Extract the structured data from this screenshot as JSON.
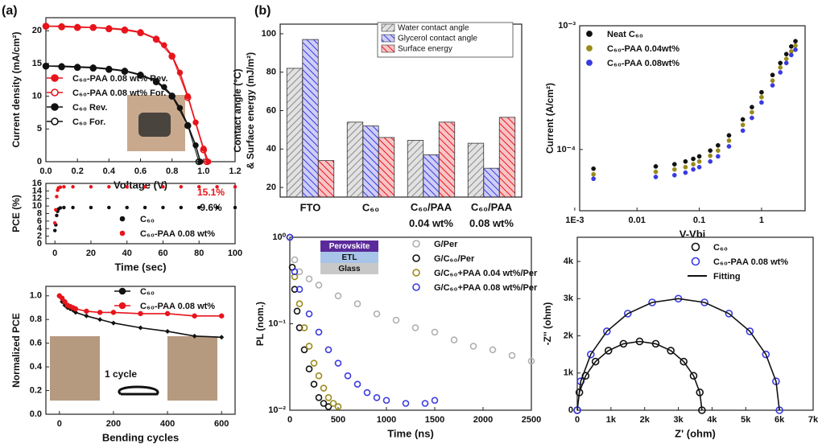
{
  "panel_labels": [
    "(a)",
    "(b)"
  ],
  "chart_data": [
    {
      "type": "line",
      "xlabel": "Voltage (V)",
      "ylabel": "Current density (mA/cm²)",
      "xlim": [
        0,
        1.2
      ],
      "xticks": [
        {
          "value": 0,
          "label": "0.0"
        },
        0.2,
        0.4,
        0.6,
        0.8,
        {
          "value": 1,
          "label": "1.0"
        },
        1.2
      ],
      "ylim": [
        0,
        22
      ],
      "yticks": [
        0,
        5,
        10,
        15,
        20
      ],
      "series": [
        {
          "name": "C₆₀-PAA 0.08 wt%  Rev.",
          "color": "#e8141b",
          "marker": "filled",
          "x": [
            0,
            0.1,
            0.2,
            0.3,
            0.4,
            0.5,
            0.6,
            0.7,
            0.75,
            0.8,
            0.85,
            0.9,
            0.95,
            1.0,
            1.03
          ],
          "values": [
            20.7,
            20.7,
            20.6,
            20.5,
            20.4,
            20.2,
            19.8,
            18.8,
            17.8,
            16.2,
            13.6,
            10,
            6,
            2,
            0
          ]
        },
        {
          "name": "C₆₀-PAA 0.08 wt%  For.",
          "color": "#e8141b",
          "marker": "open",
          "x": [
            0,
            0.1,
            0.2,
            0.3,
            0.4,
            0.5,
            0.6,
            0.7,
            0.8,
            0.9,
            1.0,
            1.02
          ],
          "values": [
            20.7,
            20.6,
            20.5,
            20.5,
            20.3,
            20.1,
            19.7,
            18.7,
            16.1,
            9.8,
            1.8,
            0
          ]
        },
        {
          "name": "C₆₀ Rev.",
          "color": "#111111",
          "marker": "filled",
          "x": [
            0,
            0.1,
            0.2,
            0.3,
            0.4,
            0.5,
            0.6,
            0.7,
            0.75,
            0.8,
            0.85,
            0.9,
            0.95,
            0.98
          ],
          "values": [
            14.6,
            14.6,
            14.5,
            14.4,
            14.2,
            13.9,
            13.3,
            12.3,
            11.4,
            10.1,
            8.2,
            5.6,
            2.5,
            0
          ]
        },
        {
          "name": "C₆₀ For.",
          "color": "#111111",
          "marker": "open",
          "x": [
            0,
            0.1,
            0.2,
            0.3,
            0.4,
            0.5,
            0.6,
            0.7,
            0.8,
            0.9,
            0.97
          ],
          "values": [
            14.6,
            14.5,
            14.4,
            14.3,
            14.1,
            13.8,
            13.2,
            12.2,
            10,
            5.5,
            0
          ]
        }
      ]
    },
    {
      "type": "scatter",
      "xlabel": "Time (sec)",
      "ylabel": "PCE (%)",
      "xlim": [
        -5,
        100
      ],
      "xticks": [
        0,
        20,
        40,
        60,
        80,
        100
      ],
      "ylim": [
        0,
        16
      ],
      "yticks": [
        0,
        2,
        4,
        6,
        8,
        10,
        12,
        14,
        16
      ],
      "annotations": [
        {
          "text": "15.1%",
          "color": "#e8141b"
        },
        {
          "text": "9.6%",
          "color": "#111111"
        }
      ],
      "series": [
        {
          "name": "C₆₀",
          "color": "#111111",
          "marker": "filled",
          "x": [
            0,
            0.5,
            1,
            1.5,
            2,
            3,
            5,
            10,
            20,
            30,
            40,
            50,
            60,
            70,
            80,
            90,
            100
          ],
          "values": [
            3.5,
            5,
            7.5,
            8.6,
            9.2,
            9.5,
            9.6,
            9.6,
            9.6,
            9.6,
            9.6,
            9.6,
            9.6,
            9.6,
            9.6,
            9.6,
            9.6
          ]
        },
        {
          "name": "C₆₀-PAA 0.08 wt%",
          "color": "#e8141b",
          "marker": "filled",
          "x": [
            0,
            0.5,
            1,
            1.5,
            2,
            3,
            5,
            10,
            20,
            30,
            40,
            50,
            60,
            70,
            80,
            90,
            100
          ],
          "values": [
            5.5,
            9,
            12.5,
            14.2,
            14.8,
            15,
            15.1,
            15.1,
            15.1,
            15.1,
            15.1,
            15.1,
            15.1,
            15.1,
            15.1,
            15.1,
            15.1
          ]
        }
      ]
    },
    {
      "type": "line",
      "xlabel": "Bending cycles",
      "ylabel": "Normalized PCE",
      "xlim": [
        -50,
        650
      ],
      "xticks": [
        0,
        200,
        400,
        600
      ],
      "ylim": [
        0,
        1.08
      ],
      "yticks": [
        {
          "value": 0,
          "label": "0.0"
        },
        0.2,
        0.4,
        0.6,
        0.8,
        {
          "value": 1,
          "label": "1.0"
        }
      ],
      "annotations": [
        {
          "text": "1 cycle",
          "color": "#111111"
        }
      ],
      "series": [
        {
          "name": "C₆₀",
          "color": "#111111",
          "marker": "diamond",
          "x": [
            0,
            10,
            20,
            30,
            40,
            50,
            60,
            100,
            150,
            200,
            300,
            400,
            500,
            600
          ],
          "values": [
            1,
            0.95,
            0.92,
            0.9,
            0.89,
            0.88,
            0.86,
            0.83,
            0.8,
            0.77,
            0.73,
            0.7,
            0.66,
            0.65
          ]
        },
        {
          "name": "C₆₀-PAA 0.08 wt%",
          "color": "#e8141b",
          "marker": "filled",
          "x": [
            0,
            10,
            20,
            30,
            40,
            50,
            60,
            100,
            150,
            200,
            300,
            400,
            500,
            600
          ],
          "values": [
            1,
            0.98,
            0.95,
            0.92,
            0.91,
            0.9,
            0.89,
            0.87,
            0.86,
            0.86,
            0.85,
            0.85,
            0.83,
            0.83
          ]
        }
      ]
    },
    {
      "type": "bar",
      "ylabel": [
        "Contact angle (°C)",
        "& Surface energy (mJ/m²)"
      ],
      "categories": [
        "FTO",
        "C₆₀",
        "C₆₀/PAA 0.04 wt%",
        "C₆₀/PAA 0.08 wt%"
      ],
      "ylim": [
        15,
        105
      ],
      "yticks": [
        20,
        40,
        60,
        80,
        100
      ],
      "series": [
        {
          "name": "Water contact angle",
          "color": "#8c8c8c",
          "values": [
            82,
            54,
            44.5,
            43
          ]
        },
        {
          "name": "Glycerol contact angle",
          "color": "#3a3ae0",
          "values": [
            97,
            52,
            37,
            30
          ]
        },
        {
          "name": "Surface energy",
          "color": "#e8141b",
          "values": [
            34,
            46,
            54,
            56.5
          ]
        }
      ]
    },
    {
      "type": "scatter",
      "xlabel": "V-Vbi",
      "ylabel": "Current (A/cm²)",
      "xlog": true,
      "ylog": true,
      "xlim": [
        0.0012,
        5
      ],
      "xticks": [
        {
          "value": 0.001,
          "label": "1E-3"
        },
        0.01,
        0.1,
        1
      ],
      "ylim": [
        3.2e-05,
        0.001
      ],
      "yticks": [
        {
          "value": 0.0001,
          "label": "10⁻⁴"
        },
        {
          "value": 0.001,
          "label": "10⁻³"
        }
      ],
      "series": [
        {
          "name": "Neat C₆₀",
          "color": "#111111",
          "marker": "small",
          "x": [
            0.002,
            0.02,
            0.04,
            0.06,
            0.08,
            0.1,
            0.15,
            0.2,
            0.3,
            0.5,
            0.7,
            1,
            1.5,
            2,
            2.5,
            3,
            3.5
          ],
          "values": [
            7e-05,
            7.3e-05,
            7.6e-05,
            8e-05,
            8.4e-05,
            8.8e-05,
            9.8e-05,
            0.000108,
            0.00013,
            0.000175,
            0.00022,
            0.00029,
            0.0004,
            0.0005,
            0.00059,
            0.00068,
            0.00075
          ]
        },
        {
          "name": "C₆₀-PAA 0.04wt%",
          "color": "#9a8a1a",
          "marker": "small",
          "x": [
            0.002,
            0.02,
            0.04,
            0.06,
            0.08,
            0.1,
            0.15,
            0.2,
            0.3,
            0.5,
            0.7,
            1,
            1.5,
            2,
            2.5,
            3,
            3.5
          ],
          "values": [
            6.3e-05,
            6.6e-05,
            6.9e-05,
            7.2e-05,
            7.6e-05,
            8e-05,
            8.9e-05,
            9.8e-05,
            0.000118,
            0.000158,
            0.0002,
            0.000265,
            0.00036,
            0.00046,
            0.00054,
            0.00062,
            0.00069
          ]
        },
        {
          "name": "C₆₀-PAA 0.08wt%",
          "color": "#3a3ae0",
          "marker": "small",
          "x": [
            0.002,
            0.02,
            0.04,
            0.06,
            0.08,
            0.1,
            0.15,
            0.2,
            0.3,
            0.5,
            0.7,
            1,
            1.5,
            2,
            2.5,
            3,
            3.5
          ],
          "values": [
            5.8e-05,
            6e-05,
            6.2e-05,
            6.5e-05,
            6.9e-05,
            7.2e-05,
            8e-05,
            8.8e-05,
            0.000106,
            0.000142,
            0.00018,
            0.00024,
            0.00033,
            0.00042,
            0.0005,
            0.00058,
            0.00064
          ]
        }
      ]
    },
    {
      "type": "scatter",
      "xlabel": "Time (ns)",
      "ylabel": "PL (nom.)",
      "ylog": true,
      "xlim": [
        0,
        2500
      ],
      "xticks": [
        0,
        500,
        1000,
        1500,
        2000,
        2500
      ],
      "ylim": [
        0.01,
        1
      ],
      "yticks": [
        {
          "value": 0.01,
          "label": "10⁻²"
        },
        {
          "value": 0.1,
          "label": "10⁻¹"
        },
        {
          "value": 1,
          "label": "10⁰"
        }
      ],
      "inset": [
        "Perovskite",
        "ETL",
        "Glass"
      ],
      "series": [
        {
          "name": "G/Per",
          "color": "#b0b0b0",
          "marker": "open",
          "x": [
            0,
            50,
            100,
            200,
            300,
            500,
            700,
            900,
            1100,
            1300,
            1500,
            1700,
            1900,
            2100,
            2300,
            2500
          ],
          "values": [
            1,
            0.55,
            0.4,
            0.33,
            0.28,
            0.21,
            0.17,
            0.13,
            0.11,
            0.09,
            0.08,
            0.065,
            0.055,
            0.05,
            0.043,
            0.037
          ]
        },
        {
          "name": "G/C₆₀/Per",
          "color": "#111111",
          "marker": "open",
          "x": [
            0,
            25,
            50,
            75,
            100,
            150,
            200,
            250,
            300,
            350,
            400
          ],
          "values": [
            1,
            0.45,
            0.25,
            0.14,
            0.09,
            0.05,
            0.03,
            0.02,
            0.014,
            0.012,
            0.011
          ]
        },
        {
          "name": "G/C₆₀+PAA 0.04 wt%/Per",
          "color": "#9a8a1a",
          "marker": "open",
          "x": [
            0,
            50,
            100,
            150,
            200,
            250,
            300,
            350,
            400,
            450,
            500
          ],
          "values": [
            1,
            0.35,
            0.17,
            0.09,
            0.055,
            0.035,
            0.025,
            0.018,
            0.014,
            0.012,
            0.011
          ]
        },
        {
          "name": "G/C₆₀+PAA 0.08 wt%/Per",
          "color": "#3a3ae0",
          "marker": "open",
          "x": [
            0,
            50,
            100,
            200,
            300,
            400,
            500,
            600,
            700,
            800,
            900,
            1000,
            1200,
            1400,
            1500
          ],
          "values": [
            1,
            0.4,
            0.25,
            0.13,
            0.08,
            0.05,
            0.035,
            0.025,
            0.02,
            0.016,
            0.014,
            0.013,
            0.012,
            0.012,
            0.013
          ]
        }
      ]
    },
    {
      "type": "scatter",
      "xlabel": "Z' (ohm)",
      "ylabel": "-Z'' (ohm)",
      "xlim": [
        0,
        7000
      ],
      "xticks": [
        0,
        {
          "value": 1000,
          "label": "1k"
        },
        {
          "value": 2000,
          "label": "2k"
        },
        {
          "value": 3000,
          "label": "3k"
        },
        {
          "value": 4000,
          "label": "4k"
        },
        {
          "value": 5000,
          "label": "5k"
        },
        {
          "value": 6000,
          "label": "6k"
        },
        {
          "value": 7000,
          "label": "7k"
        }
      ],
      "ylim": [
        0,
        4650
      ],
      "yticks": [
        0,
        {
          "value": 1000,
          "label": "1k"
        },
        {
          "value": 2000,
          "label": "2k"
        },
        {
          "value": 3000,
          "label": "3k"
        },
        {
          "value": 4000,
          "label": "4k"
        }
      ],
      "series": [
        {
          "name": "C₆₀",
          "color": "#111111",
          "marker": "open",
          "x": [
            0,
            63,
            248,
            542,
            925,
            1371,
            1850,
            2329,
            2775,
            3158,
            3452,
            3637,
            3700
          ],
          "values": [
            0,
            479,
            925,
            1308,
            1602,
            1787,
            1850,
            1787,
            1602,
            1308,
            925,
            479,
            0
          ]
        },
        {
          "name": "C₆₀-PAA 0.08 wt%",
          "color": "#3a3ae0",
          "marker": "open",
          "x": [
            0,
            102,
            402,
            879,
            1500,
            2223,
            3000,
            3777,
            4500,
            5121,
            5598,
            5898,
            6000
          ],
          "values": [
            0,
            777,
            1500,
            2121,
            2598,
            2898,
            3000,
            2898,
            2598,
            2121,
            1500,
            777,
            0
          ]
        },
        {
          "name": "Fitting",
          "color": "#111111",
          "marker": "none",
          "x": [
            0,
            63,
            248,
            542,
            925,
            1371,
            1850,
            2329,
            2775,
            3158,
            3452,
            3637,
            3700,
            null,
            0,
            102,
            402,
            879,
            1500,
            2223,
            3000,
            3777,
            4500,
            5121,
            5598,
            5898,
            6000
          ],
          "values": [
            0,
            479,
            925,
            1308,
            1602,
            1787,
            1850,
            1787,
            1602,
            1308,
            925,
            479,
            0,
            null,
            0,
            777,
            1500,
            2121,
            2598,
            2898,
            3000,
            2898,
            2598,
            2121,
            1500,
            777,
            0
          ]
        }
      ]
    }
  ]
}
